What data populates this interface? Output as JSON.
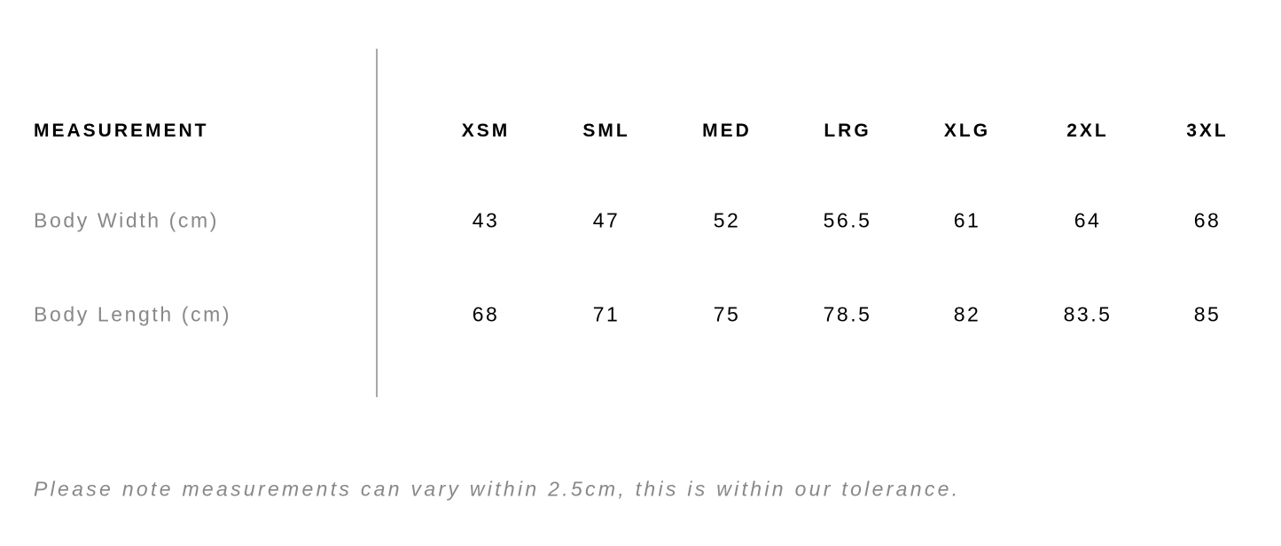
{
  "table": {
    "header_label": "MEASUREMENT",
    "sizes": [
      "XSM",
      "SML",
      "MED",
      "LRG",
      "XLG",
      "2XL",
      "3XL"
    ],
    "rows": [
      {
        "label": "Body Width (cm)",
        "values": [
          "43",
          "47",
          "52",
          "56.5",
          "61",
          "64",
          "68"
        ]
      },
      {
        "label": "Body Length (cm)",
        "values": [
          "68",
          "71",
          "75",
          "78.5",
          "82",
          "83.5",
          "85"
        ]
      }
    ]
  },
  "note": "Please note measurements can vary within 2.5cm, this is within our tolerance."
}
